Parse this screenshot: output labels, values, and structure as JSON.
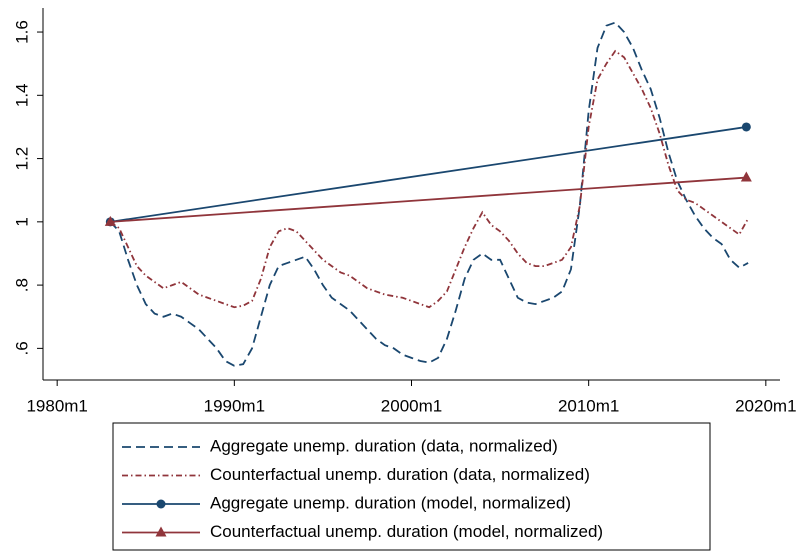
{
  "chart_data": {
    "type": "line",
    "x": [
      1983.0,
      1983.5,
      1984.0,
      1984.5,
      1985.0,
      1985.5,
      1986.0,
      1986.5,
      1987.0,
      1987.5,
      1988.0,
      1988.5,
      1989.0,
      1989.5,
      1990.0,
      1990.5,
      1991.0,
      1991.5,
      1992.0,
      1992.5,
      1993.0,
      1993.5,
      1994.0,
      1994.5,
      1995.0,
      1995.5,
      1996.0,
      1996.5,
      1997.0,
      1997.5,
      1998.0,
      1998.5,
      1999.0,
      1999.5,
      2000.0,
      2000.5,
      2001.0,
      2001.5,
      2002.0,
      2002.5,
      2003.0,
      2003.5,
      2004.0,
      2004.5,
      2005.0,
      2005.5,
      2006.0,
      2006.5,
      2007.0,
      2007.5,
      2008.0,
      2008.5,
      2009.0,
      2009.5,
      2010.0,
      2010.5,
      2011.0,
      2011.5,
      2012.0,
      2012.5,
      2013.0,
      2013.5,
      2014.0,
      2014.5,
      2015.0,
      2015.5,
      2016.0,
      2016.5,
      2017.0,
      2017.5,
      2018.0,
      2018.5,
      2019.0
    ],
    "series": [
      {
        "name": "Aggregate unemp. duration (data, normalized)",
        "color": "#1a476f",
        "dash": "dashed",
        "values": [
          1.0,
          0.97,
          0.88,
          0.8,
          0.74,
          0.71,
          0.7,
          0.71,
          0.7,
          0.68,
          0.66,
          0.63,
          0.6,
          0.56,
          0.545,
          0.55,
          0.6,
          0.7,
          0.8,
          0.86,
          0.87,
          0.88,
          0.89,
          0.85,
          0.8,
          0.76,
          0.74,
          0.72,
          0.69,
          0.66,
          0.63,
          0.61,
          0.6,
          0.58,
          0.57,
          0.56,
          0.555,
          0.57,
          0.63,
          0.72,
          0.82,
          0.88,
          0.9,
          0.88,
          0.88,
          0.82,
          0.76,
          0.745,
          0.74,
          0.75,
          0.76,
          0.78,
          0.85,
          1.05,
          1.35,
          1.55,
          1.62,
          1.63,
          1.6,
          1.55,
          1.48,
          1.42,
          1.33,
          1.22,
          1.13,
          1.07,
          1.02,
          0.98,
          0.95,
          0.93,
          0.88,
          0.855,
          0.87
        ]
      },
      {
        "name": "Counterfactual unemp. duration (data, normalized)",
        "color": "#90353b",
        "dash": "dashdot",
        "values": [
          1.0,
          0.98,
          0.92,
          0.86,
          0.83,
          0.81,
          0.79,
          0.8,
          0.81,
          0.79,
          0.77,
          0.76,
          0.75,
          0.74,
          0.73,
          0.735,
          0.75,
          0.82,
          0.92,
          0.97,
          0.98,
          0.97,
          0.94,
          0.91,
          0.88,
          0.86,
          0.84,
          0.83,
          0.81,
          0.79,
          0.78,
          0.77,
          0.765,
          0.76,
          0.75,
          0.74,
          0.73,
          0.75,
          0.78,
          0.85,
          0.92,
          0.98,
          1.03,
          0.99,
          0.97,
          0.94,
          0.9,
          0.87,
          0.86,
          0.86,
          0.87,
          0.88,
          0.92,
          1.05,
          1.3,
          1.45,
          1.5,
          1.54,
          1.52,
          1.47,
          1.42,
          1.36,
          1.28,
          1.18,
          1.1,
          1.07,
          1.06,
          1.04,
          1.02,
          1.0,
          0.98,
          0.96,
          1.01
        ]
      },
      {
        "name": "Aggregate unemp. duration (model, normalized)",
        "color": "#1a476f",
        "dash": "solid",
        "marker": "circle",
        "x": [
          1983.0,
          2018.9
        ],
        "values": [
          1.0,
          1.3
        ]
      },
      {
        "name": "Counterfactual unemp. duration (model, normalized)",
        "color": "#90353b",
        "dash": "solid",
        "marker": "triangle",
        "x": [
          1983.0,
          2018.9
        ],
        "values": [
          1.0,
          1.14
        ]
      }
    ],
    "xlim": [
      1979.2,
      2020.8
    ],
    "xticks": [
      {
        "value": 1980,
        "label": "1980m1"
      },
      {
        "value": 1990,
        "label": "1990m1"
      },
      {
        "value": 2000,
        "label": "2000m1"
      },
      {
        "value": 2010,
        "label": "2010m1"
      },
      {
        "value": 2020,
        "label": "2020m1"
      }
    ],
    "ylim": [
      0.5,
      1.676
    ],
    "yticks": [
      {
        "value": 0.6,
        "label": ".6"
      },
      {
        "value": 0.8,
        "label": ".8"
      },
      1,
      1.2,
      1.4,
      1.6
    ],
    "grid": false
  }
}
